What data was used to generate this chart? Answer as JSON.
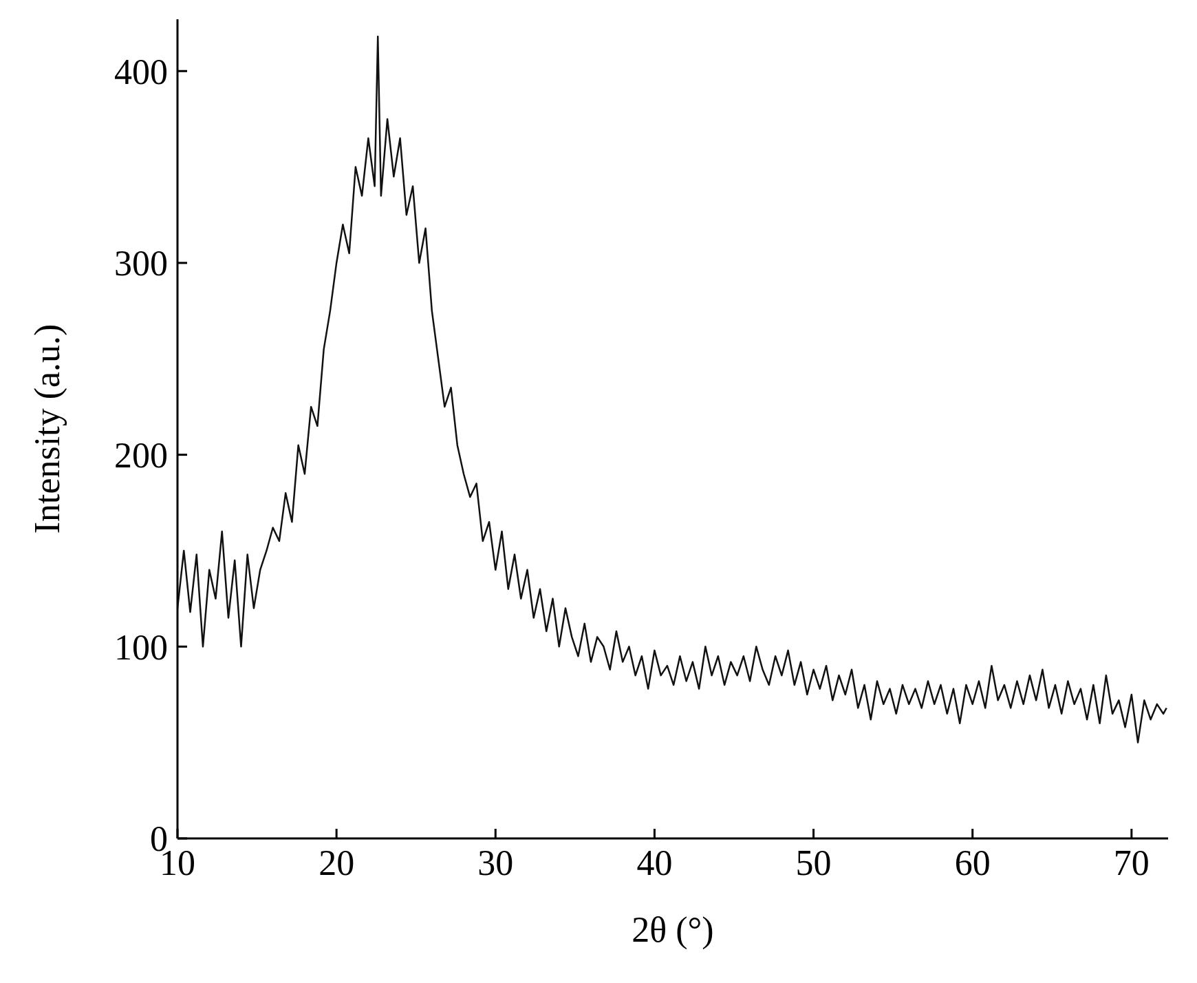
{
  "chart_data": {
    "type": "line",
    "xlabel": "2θ (°)",
    "ylabel": "Intensity (a.u.)",
    "xlim": [
      10,
      72.3
    ],
    "ylim": [
      0,
      427
    ],
    "xticks": [
      10,
      20,
      30,
      40,
      50,
      60,
      70
    ],
    "yticks": [
      0,
      100,
      200,
      300,
      400
    ],
    "grid": false,
    "legend": false,
    "series": [
      {
        "color": "#111111",
        "x": [
          10.0,
          10.4,
          10.8,
          11.2,
          11.6,
          12.0,
          12.4,
          12.8,
          13.2,
          13.6,
          14.0,
          14.4,
          14.8,
          15.2,
          15.6,
          16.0,
          16.4,
          16.8,
          17.2,
          17.6,
          18.0,
          18.4,
          18.8,
          19.2,
          19.6,
          20.0,
          20.4,
          20.8,
          21.2,
          21.6,
          22.0,
          22.4,
          22.6,
          22.8,
          23.2,
          23.6,
          24.0,
          24.4,
          24.8,
          25.2,
          25.6,
          26.0,
          26.4,
          26.8,
          27.2,
          27.6,
          28.0,
          28.4,
          28.8,
          29.2,
          29.6,
          30.0,
          30.4,
          30.8,
          31.2,
          31.6,
          32.0,
          32.4,
          32.8,
          33.2,
          33.6,
          34.0,
          34.4,
          34.8,
          35.2,
          35.6,
          36.0,
          36.4,
          36.8,
          37.2,
          37.6,
          38.0,
          38.4,
          38.8,
          39.2,
          39.6,
          40.0,
          40.4,
          40.8,
          41.2,
          41.6,
          42.0,
          42.4,
          42.8,
          43.2,
          43.6,
          44.0,
          44.4,
          44.8,
          45.2,
          45.6,
          46.0,
          46.4,
          46.8,
          47.2,
          47.6,
          48.0,
          48.4,
          48.8,
          49.2,
          49.6,
          50.0,
          50.4,
          50.8,
          51.2,
          51.6,
          52.0,
          52.4,
          52.8,
          53.2,
          53.6,
          54.0,
          54.4,
          54.8,
          55.2,
          55.6,
          56.0,
          56.4,
          56.8,
          57.2,
          57.6,
          58.0,
          58.4,
          58.8,
          59.2,
          59.6,
          60.0,
          60.4,
          60.8,
          61.2,
          61.6,
          62.0,
          62.4,
          62.8,
          63.2,
          63.6,
          64.0,
          64.4,
          64.8,
          65.2,
          65.6,
          66.0,
          66.4,
          66.8,
          67.2,
          67.6,
          68.0,
          68.4,
          68.8,
          69.2,
          69.6,
          70.0,
          70.4,
          70.8,
          71.2,
          71.6,
          72.0,
          72.2
        ],
        "values": [
          120,
          150,
          118,
          148,
          100,
          140,
          125,
          160,
          115,
          145,
          100,
          148,
          120,
          140,
          150,
          162,
          155,
          180,
          165,
          205,
          190,
          225,
          215,
          255,
          275,
          300,
          320,
          305,
          350,
          335,
          365,
          340,
          418,
          335,
          375,
          345,
          365,
          325,
          340,
          300,
          318,
          275,
          250,
          225,
          235,
          205,
          190,
          178,
          185,
          155,
          165,
          140,
          160,
          130,
          148,
          125,
          140,
          115,
          130,
          108,
          125,
          100,
          120,
          105,
          95,
          112,
          92,
          105,
          100,
          88,
          108,
          92,
          100,
          85,
          95,
          78,
          98,
          85,
          90,
          80,
          95,
          82,
          92,
          78,
          100,
          85,
          95,
          80,
          92,
          85,
          95,
          82,
          100,
          88,
          80,
          95,
          85,
          98,
          80,
          92,
          75,
          88,
          78,
          90,
          72,
          85,
          75,
          88,
          68,
          80,
          62,
          82,
          70,
          78,
          65,
          80,
          70,
          78,
          68,
          82,
          70,
          80,
          65,
          78,
          60,
          80,
          70,
          82,
          68,
          90,
          72,
          80,
          68,
          82,
          70,
          85,
          72,
          88,
          68,
          80,
          65,
          82,
          70,
          78,
          62,
          80,
          60,
          85,
          65,
          72,
          58,
          75,
          50,
          72,
          62,
          70,
          65,
          68
        ]
      }
    ]
  }
}
